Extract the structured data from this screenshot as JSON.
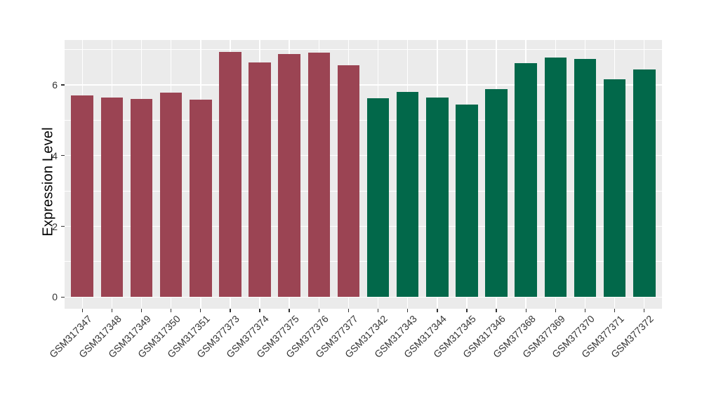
{
  "chart_data": {
    "type": "bar",
    "title": "",
    "xlabel": "",
    "ylabel": "Expression Level",
    "categories": [
      "GSM317347",
      "GSM317348",
      "GSM317349",
      "GSM317350",
      "GSM317351",
      "GSM377373",
      "GSM377374",
      "GSM377375",
      "GSM377376",
      "GSM377377",
      "GSM317342",
      "GSM317343",
      "GSM317344",
      "GSM317345",
      "GSM317346",
      "GSM377368",
      "GSM377369",
      "GSM377370",
      "GSM377371",
      "GSM377372"
    ],
    "values": [
      5.7,
      5.65,
      5.6,
      5.78,
      5.58,
      6.93,
      6.63,
      6.88,
      6.92,
      6.56,
      5.62,
      5.8,
      5.65,
      5.45,
      5.87,
      6.62,
      6.78,
      6.74,
      6.15,
      6.43
    ],
    "group_split_index": 10,
    "group_colors": [
      "#9B4453",
      "#02684A"
    ],
    "yticks": [
      0,
      2,
      4,
      6
    ],
    "minor_yticks": [
      1,
      3,
      5,
      7
    ],
    "ylim": [
      -0.33,
      7.26
    ],
    "panel_background": "#EBEBEB",
    "grid_color": "#FFFFFF",
    "axis_text_color": "#333333",
    "legend": "none",
    "grid": "horizontal major+minor, vertical major at category centers"
  }
}
